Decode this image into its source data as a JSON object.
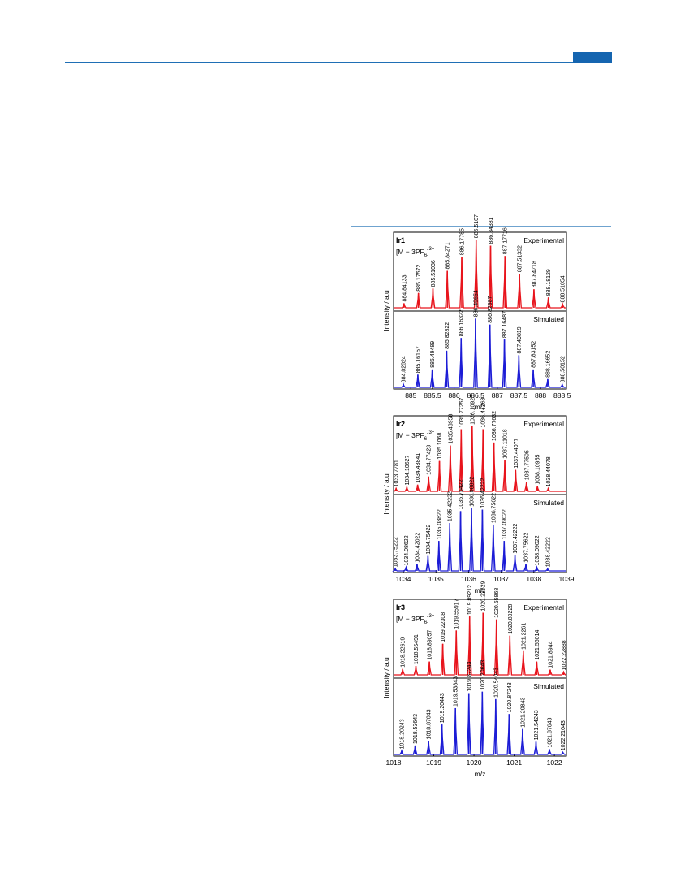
{
  "colors": {
    "header_accent": "#1565b0",
    "experimental": "#e8141c",
    "simulated": "#1c1cd6"
  },
  "chart_data": [
    {
      "type": "line",
      "compound": "Ir1",
      "ion_prefix": "[M − 3PF",
      "ion_sub": "6",
      "ion_suffix": "]",
      "ion_sup": "3+",
      "ylabel": "Intensity / a.u",
      "xlabel": "m/z",
      "xlim": [
        884.6,
        888.6
      ],
      "xticks": [
        "885",
        "885.5",
        "886",
        "886.5",
        "887",
        "887.5",
        "888",
        "888.5"
      ],
      "series": [
        {
          "name": "Experimental",
          "peaks": [
            {
              "x": 884.84133,
              "label": "884.84133",
              "rel": 0.06
            },
            {
              "x": 885.17572,
              "label": "885.17572",
              "rel": 0.2
            },
            {
              "x": 885.51036,
              "label": "885.51036",
              "rel": 0.26
            },
            {
              "x": 885.84271,
              "label": "885.84271",
              "rel": 0.5
            },
            {
              "x": 886.17785,
              "label": "886.17785",
              "rel": 0.69
            },
            {
              "x": 886.5107,
              "label": "886.5107",
              "rel": 0.92
            },
            {
              "x": 886.84381,
              "label": "886.84381",
              "rel": 0.84
            },
            {
              "x": 887.17716,
              "label": "887.17716",
              "rel": 0.7
            },
            {
              "x": 887.51332,
              "label": "887.51332",
              "rel": 0.46
            },
            {
              "x": 887.84718,
              "label": "887.84718",
              "rel": 0.25
            },
            {
              "x": 888.18129,
              "label": "888.18129",
              "rel": 0.14
            },
            {
              "x": 888.51054,
              "label": "888.51054",
              "rel": 0.05
            }
          ]
        },
        {
          "name": "Simulated",
          "peaks": [
            {
              "x": 884.82824,
              "label": "884.82824",
              "rel": 0.04
            },
            {
              "x": 885.16157,
              "label": "885.16157",
              "rel": 0.17
            },
            {
              "x": 885.49489,
              "label": "885.49489",
              "rel": 0.24
            },
            {
              "x": 885.82822,
              "label": "885.82822",
              "rel": 0.49
            },
            {
              "x": 886.16322,
              "label": "886.16322",
              "rel": 0.66
            },
            {
              "x": 886.49654,
              "label": "886.49654",
              "rel": 0.92
            },
            {
              "x": 886.82987,
              "label": "886.82987",
              "rel": 0.84
            },
            {
              "x": 887.16487,
              "label": "887.16487",
              "rel": 0.64
            },
            {
              "x": 887.49819,
              "label": "887.49819",
              "rel": 0.43
            },
            {
              "x": 887.83152,
              "label": "887.83152",
              "rel": 0.24
            },
            {
              "x": 888.16652,
              "label": "888.16652",
              "rel": 0.11
            },
            {
              "x": 888.50152,
              "label": "888.50152",
              "rel": 0.04
            }
          ]
        }
      ]
    },
    {
      "type": "line",
      "compound": "Ir2",
      "ion_prefix": "[M − 3PF",
      "ion_sub": "6",
      "ion_suffix": "]",
      "ion_sup": "3+",
      "ylabel": "Intensity / a.u",
      "xlabel": "m/z",
      "xlim": [
        1033.7,
        1039
      ],
      "xticks": [
        "1034",
        "1035",
        "1036",
        "1037",
        "1038",
        "1039"
      ],
      "series": [
        {
          "name": "Experimental",
          "peaks": [
            {
              "x": 1033.7781,
              "label": "1033.7781",
              "rel": 0.04
            },
            {
              "x": 1034.10627,
              "label": "1034.10627",
              "rel": 0.06
            },
            {
              "x": 1034.43841,
              "label": "1034.43841",
              "rel": 0.09
            },
            {
              "x": 1034.77423,
              "label": "1034.77423",
              "rel": 0.2
            },
            {
              "x": 1035.1068,
              "label": "1035.1068",
              "rel": 0.41
            },
            {
              "x": 1035.43958,
              "label": "1035.43958",
              "rel": 0.62
            },
            {
              "x": 1035.77257,
              "label": "1035.77257",
              "rel": 0.84
            },
            {
              "x": 1036.10925,
              "label": "1036.10925",
              "rel": 0.88
            },
            {
              "x": 1036.44268,
              "label": "1036.44268",
              "rel": 0.84
            },
            {
              "x": 1036.77632,
              "label": "1036.77632",
              "rel": 0.66
            },
            {
              "x": 1037.11018,
              "label": "1037.11018",
              "rel": 0.42
            },
            {
              "x": 1037.44077,
              "label": "1037.44077",
              "rel": 0.29
            },
            {
              "x": 1037.77505,
              "label": "1037.77505",
              "rel": 0.13
            },
            {
              "x": 1038.10955,
              "label": "1038.10955",
              "rel": 0.07
            },
            {
              "x": 1038.44078,
              "label": "1038.44078",
              "rel": 0.04
            }
          ]
        },
        {
          "name": "Simulated",
          "peaks": [
            {
              "x": 1033.75222,
              "label": "1033.75222",
              "rel": 0.03
            },
            {
              "x": 1034.08622,
              "label": "1034.08622",
              "rel": 0.05
            },
            {
              "x": 1034.42022,
              "label": "1034.42022",
              "rel": 0.09
            },
            {
              "x": 1034.75422,
              "label": "1034.75422",
              "rel": 0.2
            },
            {
              "x": 1035.08822,
              "label": "1035.08822",
              "rel": 0.4
            },
            {
              "x": 1035.42222,
              "label": "1035.42222",
              "rel": 0.64
            },
            {
              "x": 1035.75422,
              "label": "1035.75422",
              "rel": 0.8
            },
            {
              "x": 1036.08822,
              "label": "1036.08822",
              "rel": 0.84
            },
            {
              "x": 1036.42222,
              "label": "1036.42222",
              "rel": 0.82
            },
            {
              "x": 1036.75622,
              "label": "1036.75622",
              "rel": 0.62
            },
            {
              "x": 1037.09022,
              "label": "1037.09022",
              "rel": 0.4
            },
            {
              "x": 1037.42222,
              "label": "1037.42222",
              "rel": 0.21
            },
            {
              "x": 1037.75622,
              "label": "1037.75622",
              "rel": 0.09
            },
            {
              "x": 1038.09022,
              "label": "1038.09022",
              "rel": 0.05
            },
            {
              "x": 1038.42222,
              "label": "1038.42222",
              "rel": 0.03
            }
          ]
        }
      ]
    },
    {
      "type": "line",
      "compound": "Ir3",
      "ion_prefix": "[M − 3PF",
      "ion_sub": "6",
      "ion_suffix": "]",
      "ion_sup": "3+",
      "ylabel": "Intensity / a.u",
      "xlabel": "m/z",
      "xlim": [
        1018,
        1022.3
      ],
      "xticks": [
        "1018",
        "1019",
        "1020",
        "1021",
        "1022"
      ],
      "series": [
        {
          "name": "Experimental",
          "peaks": [
            {
              "x": 1018.22619,
              "label": "1018.22619",
              "rel": 0.08
            },
            {
              "x": 1018.55491,
              "label": "1018.55491",
              "rel": 0.12
            },
            {
              "x": 1018.89057,
              "label": "1018.89057",
              "rel": 0.18
            },
            {
              "x": 1019.22308,
              "label": "1019.22308",
              "rel": 0.42
            },
            {
              "x": 1019.55917,
              "label": "1019.55917",
              "rel": 0.6
            },
            {
              "x": 1019.89212,
              "label": "1019.89212",
              "rel": 0.79
            },
            {
              "x": 1020.22529,
              "label": "1020.22529",
              "rel": 0.84
            },
            {
              "x": 1020.55868,
              "label": "1020.55868",
              "rel": 0.75
            },
            {
              "x": 1020.89228,
              "label": "1020.89228",
              "rel": 0.53
            },
            {
              "x": 1021.2261,
              "label": "1021.2261",
              "rel": 0.32
            },
            {
              "x": 1021.56014,
              "label": "1021.56014",
              "rel": 0.18
            },
            {
              "x": 1021.8944,
              "label": "1021.8944",
              "rel": 0.07
            },
            {
              "x": 1022.22888,
              "label": "1022.22888",
              "rel": 0.04
            }
          ]
        },
        {
          "name": "Simulated",
          "peaks": [
            {
              "x": 1018.20243,
              "label": "1018.20243",
              "rel": 0.05
            },
            {
              "x": 1018.53643,
              "label": "1018.53643",
              "rel": 0.12
            },
            {
              "x": 1018.87043,
              "label": "1018.87043",
              "rel": 0.18
            },
            {
              "x": 1019.20443,
              "label": "1019.20443",
              "rel": 0.4
            },
            {
              "x": 1019.53843,
              "label": "1019.53843",
              "rel": 0.62
            },
            {
              "x": 1019.87243,
              "label": "1019.87243",
              "rel": 0.82
            },
            {
              "x": 1020.20643,
              "label": "1020.20643",
              "rel": 0.84
            },
            {
              "x": 1020.54043,
              "label": "1020.54043",
              "rel": 0.74
            },
            {
              "x": 1020.87243,
              "label": "1020.87243",
              "rel": 0.54
            },
            {
              "x": 1021.20843,
              "label": "1021.20843",
              "rel": 0.34
            },
            {
              "x": 1021.54243,
              "label": "1021.54243",
              "rel": 0.17
            },
            {
              "x": 1021.87643,
              "label": "1021.87643",
              "rel": 0.07
            },
            {
              "x": 1022.21043,
              "label": "1022.21043",
              "rel": 0.03
            }
          ]
        }
      ]
    }
  ]
}
